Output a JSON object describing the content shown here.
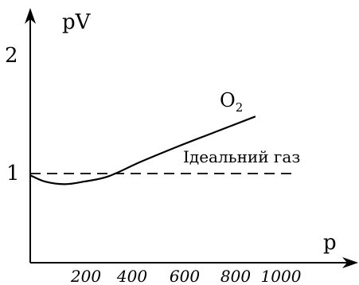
{
  "chart_data": {
    "type": "line",
    "ylabel": "pV",
    "xlabel": "p",
    "x_ticks": [
      "200",
      "400",
      "600",
      "800",
      "1000"
    ],
    "y_ticks": [
      "1",
      "2"
    ],
    "xlim": [
      0,
      1100
    ],
    "ylim": [
      0,
      2.3
    ],
    "series": [
      {
        "name": "O",
        "subscript": "2",
        "x": [
          0,
          60,
          140,
          220,
          320,
          450,
          600,
          750,
          920
        ],
        "y": [
          0.98,
          0.91,
          0.88,
          0.91,
          0.97,
          1.13,
          1.3,
          1.46,
          1.64
        ]
      },
      {
        "name": "Ідеальний газ",
        "style": "dashed",
        "x": [
          0,
          1080
        ],
        "y": [
          1.0,
          1.0
        ]
      }
    ]
  }
}
